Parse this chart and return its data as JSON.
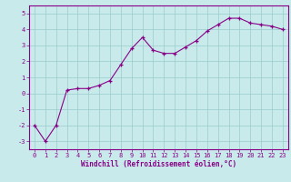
{
  "x": [
    0,
    1,
    2,
    3,
    4,
    5,
    6,
    7,
    8,
    9,
    10,
    11,
    12,
    13,
    14,
    15,
    16,
    17,
    18,
    19,
    20,
    21,
    22,
    23
  ],
  "y": [
    -2.0,
    -3.0,
    -2.0,
    0.2,
    0.3,
    0.3,
    0.5,
    0.8,
    1.8,
    2.8,
    3.5,
    2.7,
    2.5,
    2.5,
    2.9,
    3.3,
    3.9,
    4.3,
    4.7,
    4.7,
    4.4,
    4.3,
    4.2,
    4.0
  ],
  "line_color": "#880088",
  "marker": "+",
  "marker_color": "#880088",
  "bg_color": "#c8eaea",
  "grid_color": "#99cccc",
  "xlabel": "Windchill (Refroidissement éolien,°C)",
  "xlabel_color": "#880088",
  "tick_color": "#880088",
  "spine_color": "#880088",
  "ylim": [
    -3.5,
    5.5
  ],
  "xlim": [
    -0.5,
    23.5
  ],
  "yticks": [
    -3,
    -2,
    -1,
    0,
    1,
    2,
    3,
    4,
    5
  ],
  "xticks": [
    0,
    1,
    2,
    3,
    4,
    5,
    6,
    7,
    8,
    9,
    10,
    11,
    12,
    13,
    14,
    15,
    16,
    17,
    18,
    19,
    20,
    21,
    22,
    23
  ],
  "tick_fontsize": 5.0,
  "xlabel_fontsize": 5.5,
  "linewidth": 0.8,
  "markersize": 3.5
}
